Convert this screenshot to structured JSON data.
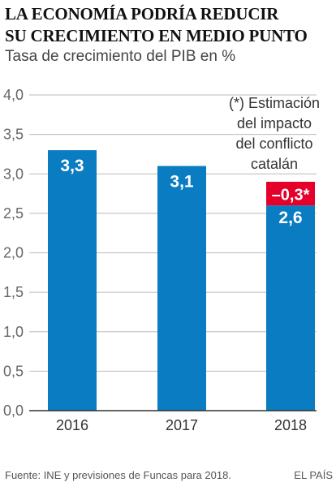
{
  "header": {
    "title_line1": "La economía podría reducir",
    "title_line2": "su crecimiento en medio punto",
    "subtitle": "Tasa de crecimiento del PIB en %"
  },
  "footer": {
    "source": "Fuente: INE y previsiones de Funcas para 2018.",
    "brand": "EL PAÍS"
  },
  "colors": {
    "bar": "#0a7cc1",
    "impact": "#e4002b",
    "axis": "#333333",
    "grid": "#bbbbbb",
    "tick_text": "#666666",
    "bar_label": "#ffffff"
  },
  "chart_data": {
    "type": "bar",
    "title": "La economía podría reducir su crecimiento en medio punto",
    "subtitle": "Tasa de crecimiento del PIB en %",
    "categories": [
      "2016",
      "2017",
      "2018"
    ],
    "series": [
      {
        "values": [
          3.3,
          3.1,
          2.6
        ],
        "labels": [
          "3,3",
          "3,1",
          "2,6"
        ]
      },
      {
        "values": [
          0,
          0,
          0.3
        ],
        "labels": [
          "",
          "",
          "–0,3*"
        ]
      }
    ],
    "ylim": [
      0,
      4.0
    ],
    "yticks": [
      0,
      0.5,
      1.0,
      1.5,
      2.0,
      2.5,
      3.0,
      3.5,
      4.0
    ],
    "ytick_labels": [
      "0,0",
      "0,5",
      "1,0",
      "1,5",
      "2,0",
      "2,5",
      "3,0",
      "3,5",
      "4,0"
    ],
    "grid": true,
    "annotation": [
      "(*) Estimación",
      "del impacto",
      "del conflicto",
      "catalán"
    ]
  }
}
